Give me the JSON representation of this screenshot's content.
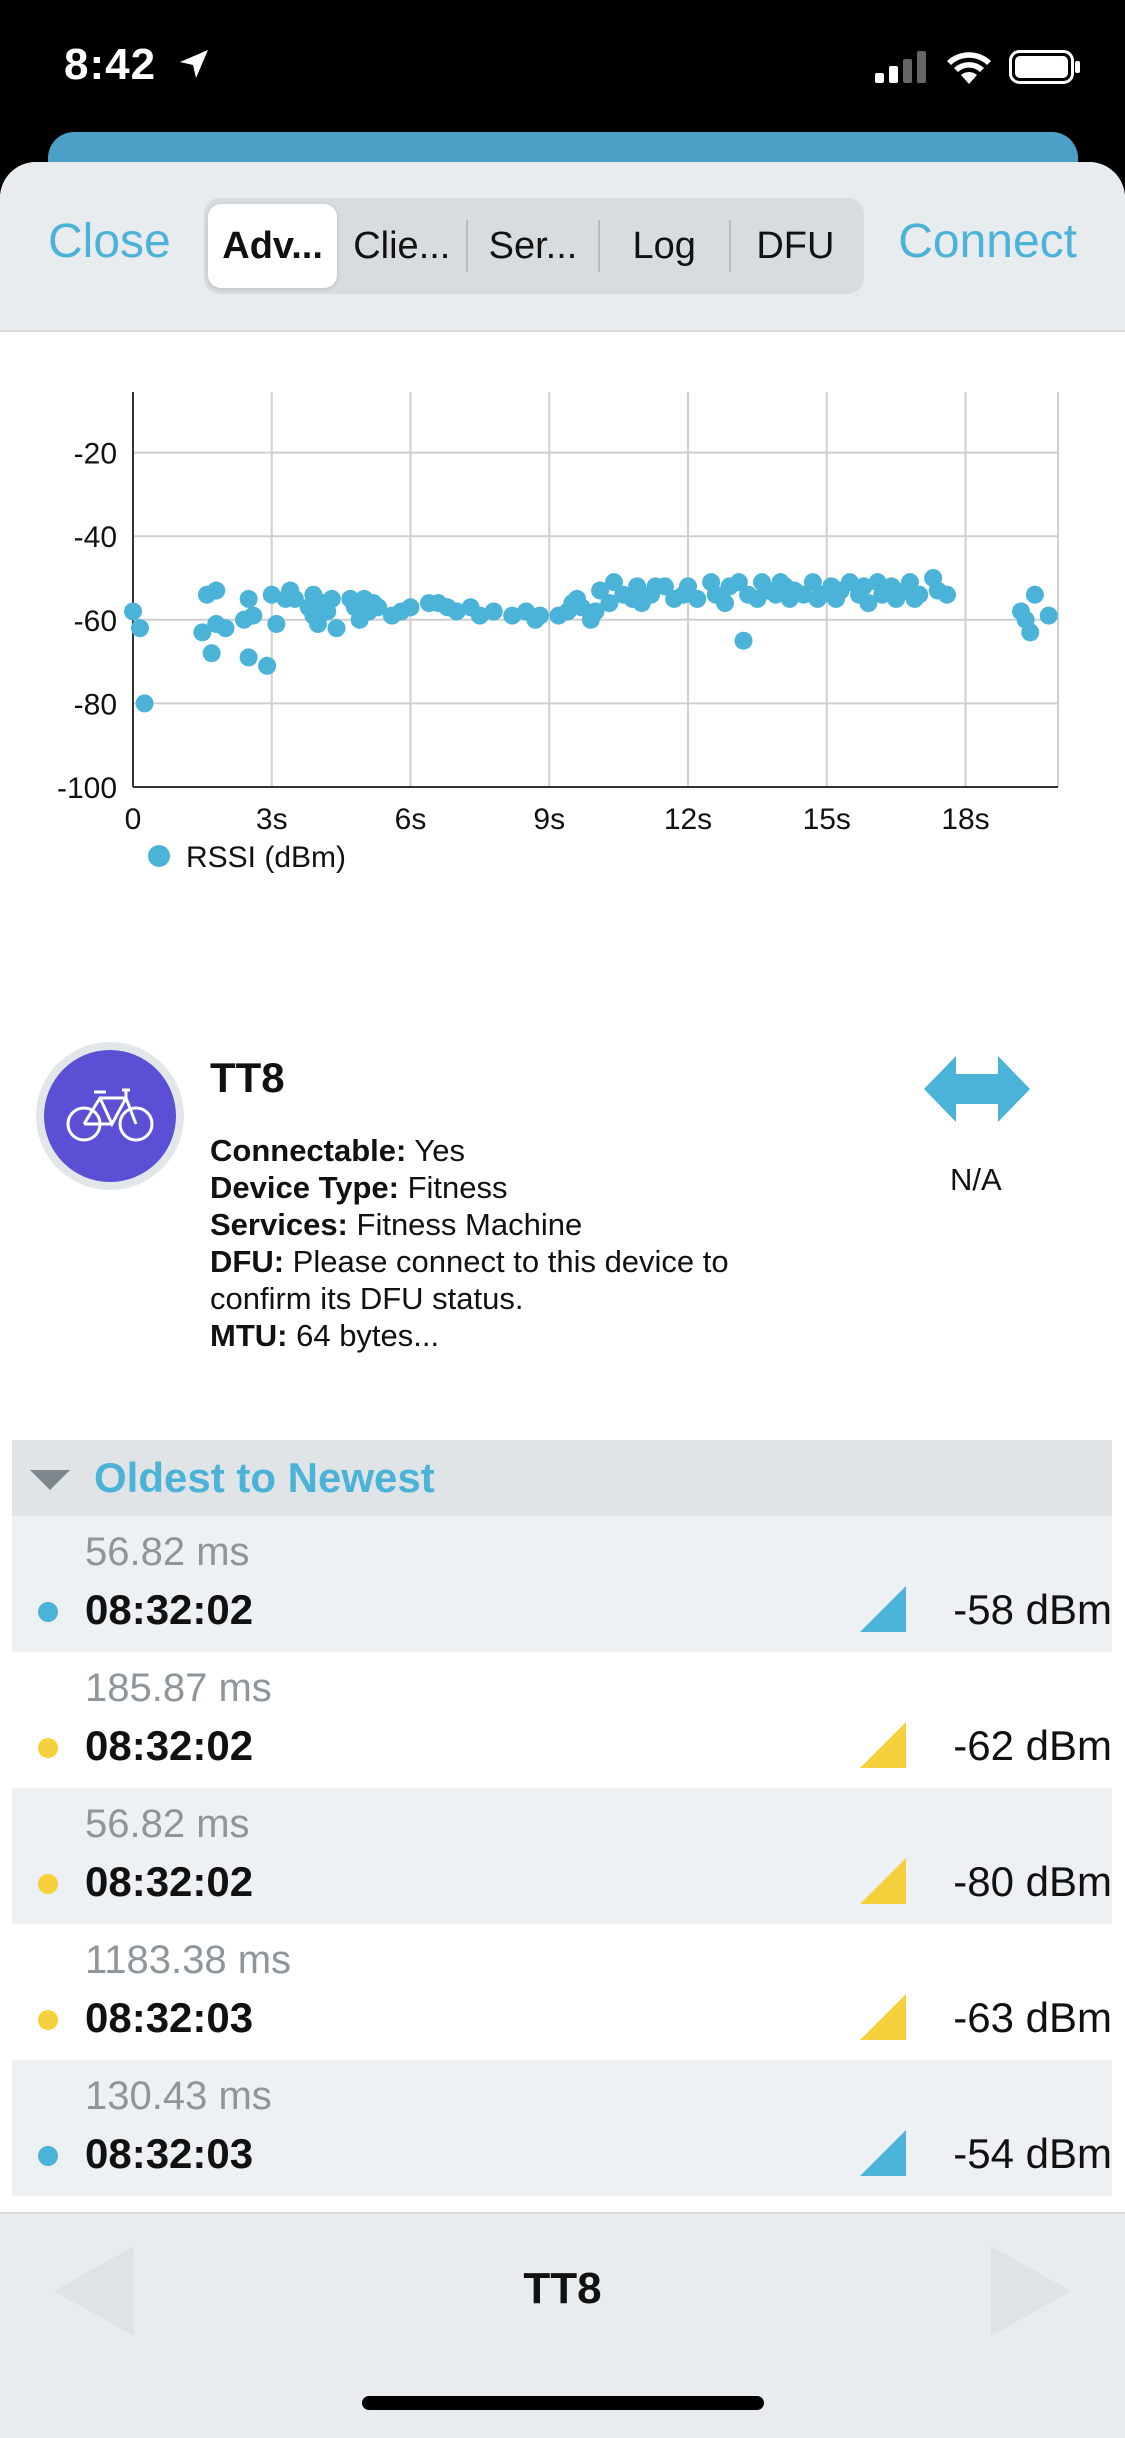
{
  "status_bar": {
    "time": "8:42"
  },
  "nav": {
    "close_label": "Close",
    "connect_label": "Connect",
    "tabs": [
      {
        "label": "Adv...",
        "active": true
      },
      {
        "label": "Clie..."
      },
      {
        "label": "Ser..."
      },
      {
        "label": "Log"
      },
      {
        "label": "DFU"
      }
    ]
  },
  "chart_data": {
    "type": "scatter",
    "xlim": [
      0,
      20
    ],
    "ylim": [
      -100,
      0
    ],
    "x_ticks": [
      0,
      3,
      6,
      9,
      12,
      15,
      18
    ],
    "x_tick_labels": [
      "0",
      "3s",
      "6s",
      "9s",
      "12s",
      "15s",
      "18s"
    ],
    "y_ticks": [
      0,
      -20,
      -40,
      -60,
      -80,
      -100
    ],
    "grid": true,
    "legend": "bottom-left",
    "series": [
      {
        "name": "RSSI (dBm)",
        "color": "#4bb2d8",
        "points": [
          [
            0.0,
            -58
          ],
          [
            0.15,
            -62
          ],
          [
            0.25,
            -80
          ],
          [
            1.5,
            -63
          ],
          [
            1.6,
            -54
          ],
          [
            1.7,
            -68
          ],
          [
            1.8,
            -61
          ],
          [
            1.8,
            -53
          ],
          [
            2.0,
            -62
          ],
          [
            2.4,
            -60
          ],
          [
            2.5,
            -55
          ],
          [
            2.5,
            -69
          ],
          [
            2.6,
            -59
          ],
          [
            2.9,
            -71
          ],
          [
            3.0,
            -54
          ],
          [
            3.1,
            -61
          ],
          [
            3.3,
            -55
          ],
          [
            3.4,
            -53
          ],
          [
            3.5,
            -55
          ],
          [
            3.8,
            -57
          ],
          [
            3.9,
            -59
          ],
          [
            3.9,
            -54
          ],
          [
            4.0,
            -61
          ],
          [
            4.1,
            -56
          ],
          [
            4.2,
            -58
          ],
          [
            4.3,
            -55
          ],
          [
            4.4,
            -62
          ],
          [
            4.7,
            -55
          ],
          [
            4.8,
            -57
          ],
          [
            4.9,
            -60
          ],
          [
            5.0,
            -55
          ],
          [
            5.1,
            -58
          ],
          [
            5.2,
            -56
          ],
          [
            5.3,
            -57
          ],
          [
            5.6,
            -59
          ],
          [
            5.8,
            -58
          ],
          [
            6.0,
            -57
          ],
          [
            6.4,
            -56
          ],
          [
            6.6,
            -56
          ],
          [
            6.8,
            -57
          ],
          [
            7.0,
            -58
          ],
          [
            7.3,
            -57
          ],
          [
            7.5,
            -59
          ],
          [
            7.8,
            -58
          ],
          [
            8.2,
            -59
          ],
          [
            8.5,
            -58
          ],
          [
            8.7,
            -60
          ],
          [
            8.8,
            -59
          ],
          [
            9.2,
            -59
          ],
          [
            9.4,
            -58
          ],
          [
            9.5,
            -56
          ],
          [
            9.6,
            -55
          ],
          [
            9.7,
            -57
          ],
          [
            9.9,
            -60
          ],
          [
            10.0,
            -58
          ],
          [
            10.1,
            -53
          ],
          [
            10.3,
            -56
          ],
          [
            10.4,
            -51
          ],
          [
            10.6,
            -54
          ],
          [
            10.8,
            -55
          ],
          [
            10.9,
            -52
          ],
          [
            11.0,
            -56
          ],
          [
            11.2,
            -54
          ],
          [
            11.3,
            -52
          ],
          [
            11.5,
            -52
          ],
          [
            11.7,
            -55
          ],
          [
            11.9,
            -54
          ],
          [
            12.0,
            -52
          ],
          [
            12.2,
            -55
          ],
          [
            12.5,
            -51
          ],
          [
            12.6,
            -54
          ],
          [
            12.8,
            -56
          ],
          [
            12.9,
            -52
          ],
          [
            13.1,
            -51
          ],
          [
            13.2,
            -65
          ],
          [
            13.3,
            -54
          ],
          [
            13.5,
            -55
          ],
          [
            13.6,
            -51
          ],
          [
            13.7,
            -53
          ],
          [
            13.9,
            -54
          ],
          [
            14.0,
            -51
          ],
          [
            14.1,
            -52
          ],
          [
            14.2,
            -55
          ],
          [
            14.3,
            -53
          ],
          [
            14.5,
            -54
          ],
          [
            14.7,
            -51
          ],
          [
            14.8,
            -55
          ],
          [
            14.9,
            -54
          ],
          [
            15.1,
            -52
          ],
          [
            15.2,
            -55
          ],
          [
            15.3,
            -53
          ],
          [
            15.5,
            -51
          ],
          [
            15.7,
            -54
          ],
          [
            15.8,
            -52
          ],
          [
            15.9,
            -56
          ],
          [
            16.1,
            -51
          ],
          [
            16.2,
            -54
          ],
          [
            16.4,
            -52
          ],
          [
            16.5,
            -55
          ],
          [
            16.7,
            -53
          ],
          [
            16.8,
            -51
          ],
          [
            16.9,
            -55
          ],
          [
            17.0,
            -54
          ],
          [
            17.3,
            -50
          ],
          [
            17.4,
            -53
          ],
          [
            17.6,
            -54
          ],
          [
            19.2,
            -58
          ],
          [
            19.3,
            -60
          ],
          [
            19.4,
            -63
          ],
          [
            19.5,
            -54
          ],
          [
            19.8,
            -59
          ]
        ]
      }
    ]
  },
  "device": {
    "name": "TT8",
    "connectable_key": "Connectable:",
    "connectable_val": " Yes",
    "type_key": "Device Type:",
    "type_val": " Fitness",
    "services_key": "Services:",
    "services_val": " Fitness Machine",
    "dfu_key": "DFU:",
    "dfu_val": " Please connect to this device to confirm its DFU status.",
    "mtu_key": "MTU:",
    "mtu_val": " 64 bytes...",
    "avatar_icon": "bicycle-icon",
    "connection_icon": "double-arrow-icon",
    "connection_status": "N/A"
  },
  "list": {
    "header": "Oldest to Newest",
    "rows": [
      {
        "duration": "56.82 ms",
        "time": "08:32:02",
        "rssi": "-58 dBm",
        "color": "#4bb2d8"
      },
      {
        "duration": "185.87 ms",
        "time": "08:32:02",
        "rssi": "-62 dBm",
        "color": "#f6cf3c"
      },
      {
        "duration": "56.82 ms",
        "time": "08:32:02",
        "rssi": "-80 dBm",
        "color": "#f6cf3c"
      },
      {
        "duration": "1183.38 ms",
        "time": "08:32:03",
        "rssi": "-63 dBm",
        "color": "#f6cf3c"
      },
      {
        "duration": "130.43 ms",
        "time": "08:32:03",
        "rssi": "-54 dBm",
        "color": "#4bb2d8"
      }
    ]
  },
  "bottom": {
    "title": "TT8"
  }
}
